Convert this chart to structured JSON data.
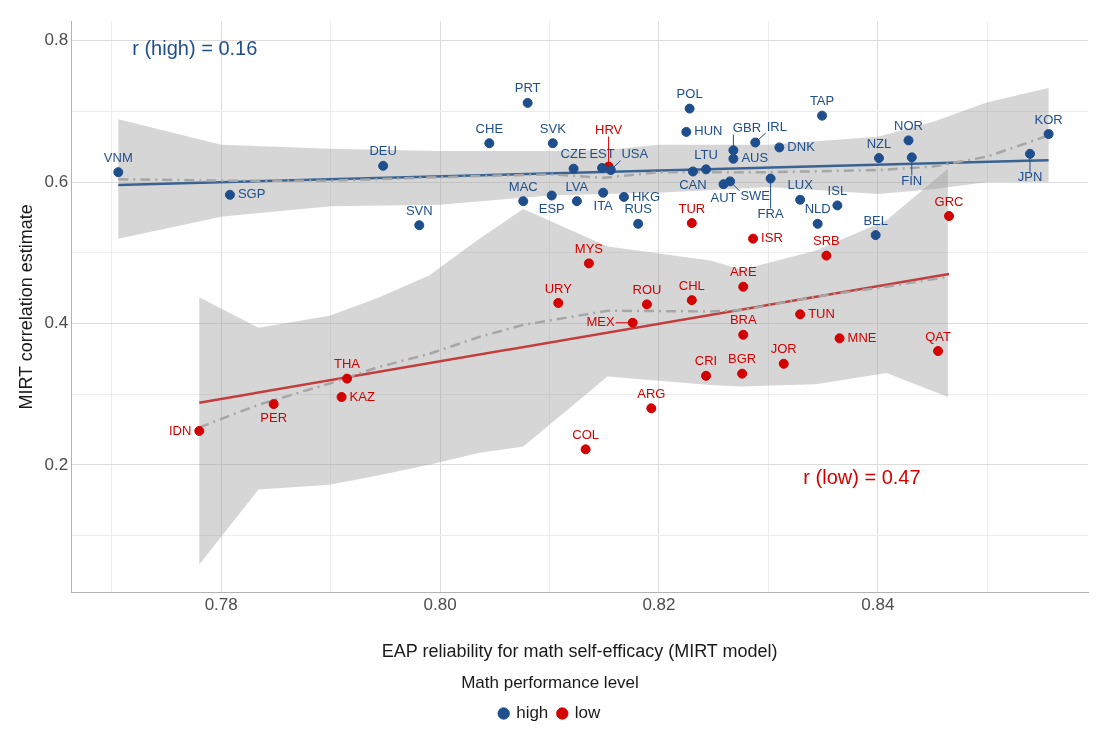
{
  "chart_data": {
    "type": "scatter",
    "xlabel": "EAP reliability for math self-efficacy (MIRT model)",
    "ylabel": "MIRT correlation estimate",
    "legend_title": "Math performance level",
    "legend": "bottom",
    "grid": true,
    "xlim": [
      0.7663,
      0.8592
    ],
    "ylim": [
      0.0193,
      0.8276
    ],
    "xticks": [
      {
        "value": 0.77,
        "label": null
      },
      0.78,
      {
        "value": 0.79,
        "label": null
      },
      "0.80",
      {
        "value": 0.81,
        "label": null
      },
      0.82,
      {
        "value": 0.83,
        "label": null
      },
      0.84,
      {
        "value": 0.85,
        "label": null
      }
    ],
    "yticks": [
      {
        "value": 0.1,
        "label": null
      },
      0.2,
      {
        "value": 0.3,
        "label": null
      },
      0.4,
      {
        "value": 0.5,
        "label": null
      },
      0.6,
      {
        "value": 0.7,
        "label": null
      },
      0.8
    ],
    "annotations": [
      "r (high) = 0.16",
      "r (low) = 0.47"
    ],
    "series": [
      {
        "type": "line",
        "line_style": "dashed",
        "color": "#a6a6a6",
        "x": [
          0.7706,
          0.78,
          0.79,
          0.8,
          0.81,
          0.815,
          0.82,
          0.83,
          0.84,
          0.845,
          0.85,
          0.8556
        ],
        "values": [
          0.604,
          0.602,
          0.602,
          0.607,
          0.611,
          0.606,
          0.614,
          0.614,
          0.617,
          0.622,
          0.636,
          0.666
        ],
        "upper": [
          0.689,
          0.653,
          0.647,
          0.644,
          0.644,
          0.645,
          0.653,
          0.653,
          0.664,
          0.685,
          0.713,
          0.733
        ],
        "lower": [
          0.52,
          0.551,
          0.566,
          0.568,
          0.581,
          0.583,
          0.585,
          0.593,
          0.583,
          0.59,
          0.6,
          0.6
        ]
      },
      {
        "type": "line",
        "line_style": "dashed",
        "color": "#a6a6a6",
        "x": [
          0.778,
          0.7834,
          0.7899,
          0.7943,
          0.799,
          0.8036,
          0.8076,
          0.8153,
          0.8247,
          0.8276,
          0.8343,
          0.8408,
          0.8464
        ],
        "values": [
          0.253,
          0.285,
          0.315,
          0.338,
          0.357,
          0.381,
          0.398,
          0.418,
          0.417,
          0.419,
          0.438,
          0.452,
          0.466
        ],
        "upper": [
          0.437,
          0.394,
          0.411,
          0.436,
          0.468,
          0.52,
          0.562,
          0.509,
          0.489,
          0.476,
          0.503,
          0.546,
          0.619
        ],
        "lower": [
          0.059,
          0.165,
          0.172,
          0.185,
          0.2,
          0.217,
          0.226,
          0.325,
          0.313,
          0.311,
          0.314,
          0.33,
          0.296
        ]
      },
      {
        "type": "line",
        "color": "#3a6391",
        "x": [
          0.7706,
          0.8556
        ],
        "values": [
          0.596,
          0.631
        ]
      },
      {
        "type": "line",
        "color": "#c43c3c",
        "x": [
          0.778,
          0.8465
        ],
        "values": [
          0.288,
          0.47
        ]
      },
      {
        "name": "high",
        "color": "#1f4e8c",
        "marker": "circle",
        "x": [
          0.7706,
          0.7808,
          0.7948,
          0.7981,
          0.8045,
          0.808,
          0.8103,
          0.8122,
          0.8148,
          0.8156,
          0.8076,
          0.8102,
          0.8125,
          0.8149,
          0.8168,
          0.8181,
          0.8225,
          0.8228,
          0.8243,
          0.8231,
          0.8268,
          0.8268,
          0.8259,
          0.8265,
          0.8288,
          0.831,
          0.8349,
          0.8302,
          0.8329,
          0.8363,
          0.8345,
          0.8398,
          0.8401,
          0.8428,
          0.8431,
          0.8539,
          0.8556
        ],
        "values": [
          0.614,
          0.582,
          0.623,
          0.539,
          0.655,
          0.712,
          0.655,
          0.619,
          0.62,
          0.617,
          0.573,
          0.581,
          0.573,
          0.585,
          0.579,
          0.541,
          0.671,
          0.704,
          0.618,
          0.615,
          0.645,
          0.633,
          0.597,
          0.601,
          0.656,
          0.649,
          0.694,
          0.605,
          0.575,
          0.567,
          0.541,
          0.525,
          0.634,
          0.659,
          0.635,
          0.64,
          0.668
        ],
        "value_labels": [
          "VNM",
          "SGP",
          "DEU",
          "SVN",
          "CHE",
          "PRT",
          "SVK",
          "CZE",
          "EST",
          "USA",
          "MAC",
          "ESP",
          "LVA",
          "ITA",
          "HKG",
          "RUS",
          "HUN",
          "POL",
          "LTU",
          "CAN",
          "GBR",
          "AUS",
          "AUT",
          "SWE",
          "IRL",
          "DNK",
          "TAP",
          "FRA",
          "LUX",
          "ISL",
          "NLD",
          "BEL",
          "NZL",
          "NOR",
          "FIN",
          "JPN",
          "KOR"
        ]
      },
      {
        "name": "low",
        "color": "#d40000",
        "marker": "circle",
        "x": [
          0.8154,
          0.823,
          0.8286,
          0.8465,
          0.8353,
          0.8136,
          0.8108,
          0.8189,
          0.823,
          0.8277,
          0.8176,
          0.8329,
          0.8277,
          0.8365,
          0.8455,
          0.8314,
          0.8243,
          0.8276,
          0.8193,
          0.8133,
          0.778,
          0.7848,
          0.791,
          0.7915
        ],
        "values": [
          0.622,
          0.542,
          0.52,
          0.552,
          0.496,
          0.485,
          0.429,
          0.427,
          0.433,
          0.452,
          0.401,
          0.413,
          0.384,
          0.379,
          0.361,
          0.343,
          0.326,
          0.329,
          0.28,
          0.222,
          0.248,
          0.286,
          0.296,
          0.322
        ],
        "value_labels": [
          "HRV",
          "TUR",
          "ISR",
          "GRC",
          "SRB",
          "MYS",
          "URY",
          "ROU",
          "CHL",
          "ARE",
          "MEX",
          "TUN",
          "BRA",
          "MNE",
          "QAT",
          "JOR",
          "CRI",
          "BGR",
          "ARG",
          "COL",
          "IDN",
          "PER",
          "KAZ",
          "THA"
        ]
      }
    ]
  }
}
